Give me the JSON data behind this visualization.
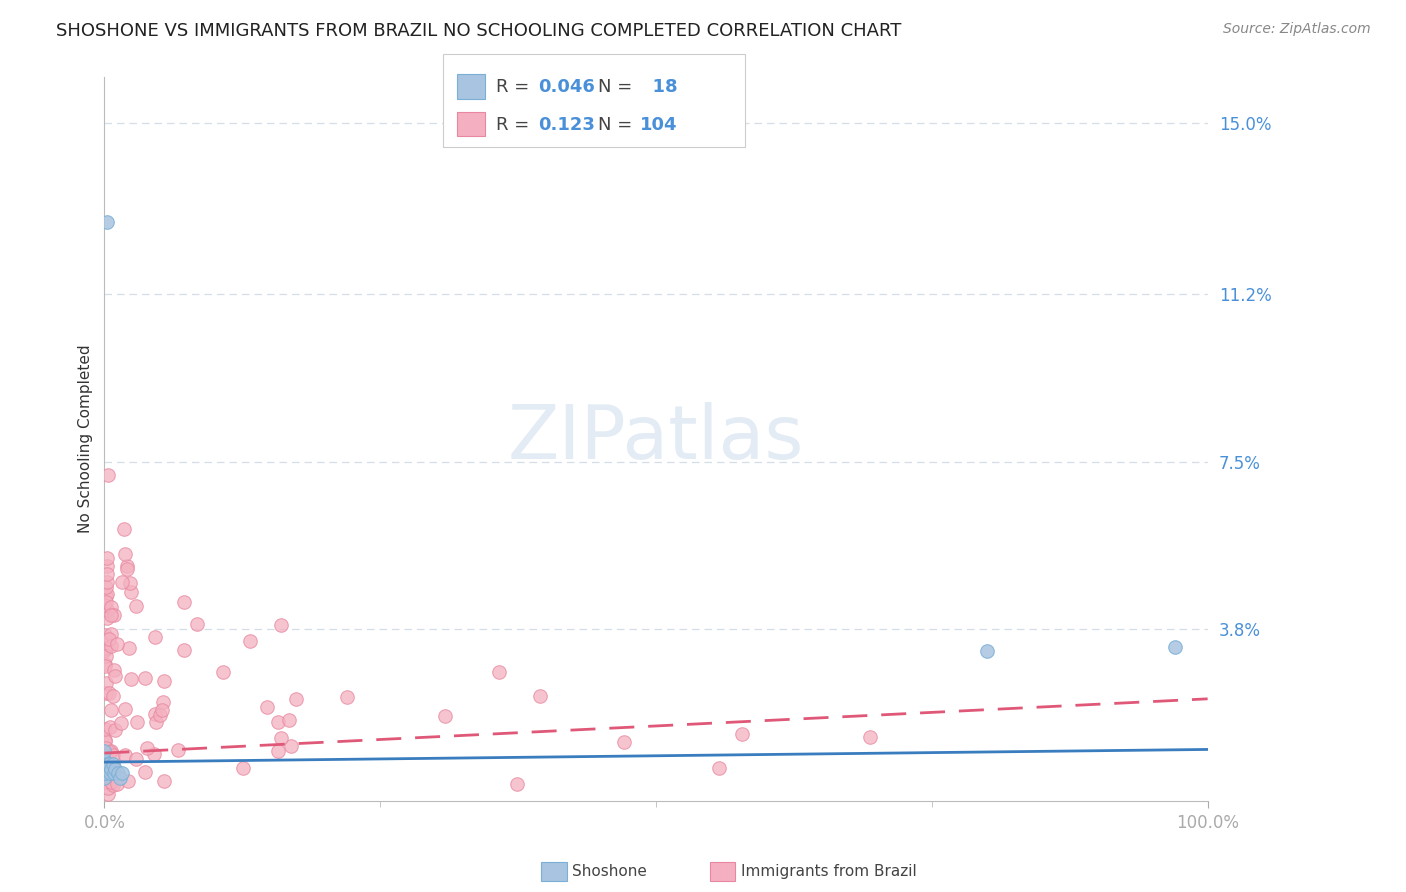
{
  "title": "SHOSHONE VS IMMIGRANTS FROM BRAZIL NO SCHOOLING COMPLETED CORRELATION CHART",
  "source": "Source: ZipAtlas.com",
  "ylabel": "No Schooling Completed",
  "background_color": "#ffffff",
  "watermark": "ZIPatlas",
  "xlim": [
    0.0,
    1.0
  ],
  "ylim": [
    0.0,
    0.16
  ],
  "yticks": [
    0.0,
    0.038,
    0.075,
    0.112,
    0.15
  ],
  "ytick_labels": [
    "",
    "3.8%",
    "7.5%",
    "11.2%",
    "15.0%"
  ],
  "xtick_labels": [
    "0.0%",
    "100.0%"
  ],
  "series": [
    {
      "name": "Shoshone",
      "R": 0.046,
      "N": 18,
      "marker_color": "#a8c4e0",
      "marker_edge": "#7aafd6",
      "line_color": "#3a7dbf",
      "intercept": 0.0085,
      "slope": 0.0028,
      "line_style": "solid"
    },
    {
      "name": "Immigrants from Brazil",
      "R": 0.123,
      "N": 104,
      "marker_color": "#f4b0c0",
      "marker_edge": "#e888a0",
      "line_color": "#e05878",
      "intercept": 0.0105,
      "slope": 0.012,
      "line_style": "dashed"
    }
  ],
  "tick_color": "#4a90d9",
  "grid_color": "#d5dde8",
  "title_fontsize": 13,
  "tick_fontsize": 12,
  "legend_fontsize": 13,
  "source_fontsize": 10
}
